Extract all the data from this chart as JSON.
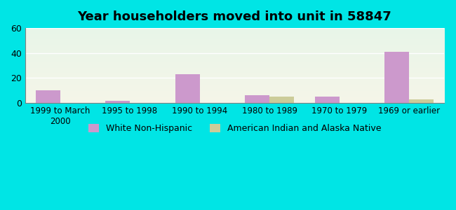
{
  "title": "Year householders moved into unit in 58847",
  "categories": [
    "1999 to March\n2000",
    "1995 to 1998",
    "1990 to 1994",
    "1980 to 1989",
    "1970 to 1979",
    "1969 or earlier"
  ],
  "white_non_hispanic": [
    10,
    2,
    23,
    6,
    5,
    41
  ],
  "american_indian": [
    0,
    0,
    0,
    5,
    0,
    3
  ],
  "white_color": "#cc99cc",
  "indian_color": "#cccc99",
  "bg_outer": "#00e5e5",
  "bg_plot_top": "#e8f5e8",
  "bg_plot_bottom": "#f5f5e8",
  "ylim": [
    0,
    60
  ],
  "yticks": [
    0,
    20,
    40,
    60
  ],
  "bar_width": 0.35,
  "legend_labels": [
    "White Non-Hispanic",
    "American Indian and Alaska Native"
  ]
}
